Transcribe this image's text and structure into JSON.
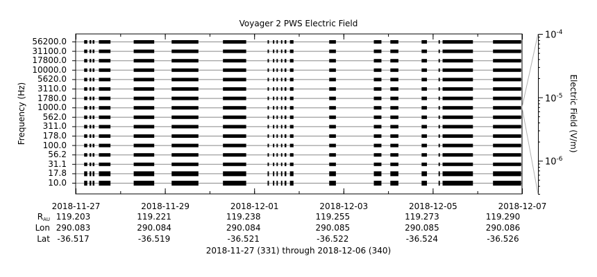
{
  "chart_data": {
    "type": "spectrogram",
    "title": "Voyager 2 PWS Electric Field",
    "ylabel": "Frequency (Hz)",
    "zlabel": "Electric Field (V/m)",
    "y_channels": [
      "10.0",
      "17.8",
      "31.1",
      "56.2",
      "100.0",
      "178.0",
      "311.0",
      "562.0",
      "1000.0",
      "1780.0",
      "3110.0",
      "5620.0",
      "10000.0",
      "17800.0",
      "31100.0",
      "56200.0"
    ],
    "colorbar": {
      "scale": "log",
      "range": [
        3e-07,
        0.0001
      ],
      "ticks": [
        {
          "base": "10",
          "exp": "-4",
          "value": 0.0001
        },
        {
          "base": "10",
          "exp": "-5",
          "value": 1e-05
        },
        {
          "base": "10",
          "exp": "-6",
          "value": 1e-06
        }
      ]
    },
    "x_range_days": [
      0,
      10
    ],
    "x_ticks": [
      {
        "day": 0,
        "date": "2018-11-27",
        "r": "119.203",
        "lon": "290.083",
        "lat": "-36.517"
      },
      {
        "day": 2,
        "date": "2018-11-29",
        "r": "119.221",
        "lon": "290.084",
        "lat": "-36.519"
      },
      {
        "day": 4,
        "date": "2018-12-01",
        "r": "119.238",
        "lon": "290.084",
        "lat": "-36.521"
      },
      {
        "day": 6,
        "date": "2018-12-03",
        "r": "119.255",
        "lon": "290.085",
        "lat": "-36.522"
      },
      {
        "day": 8,
        "date": "2018-12-05",
        "r": "119.273",
        "lon": "290.085",
        "lat": "-36.524"
      },
      {
        "day": 10,
        "date": "2018-12-07",
        "r": "119.290",
        "lon": "290.086",
        "lat": "-36.526"
      }
    ],
    "data_intervals_days": [
      [
        0.19,
        0.26
      ],
      [
        0.31,
        0.35
      ],
      [
        0.38,
        0.42
      ],
      [
        0.52,
        0.78
      ],
      [
        1.3,
        1.76
      ],
      [
        2.15,
        2.75
      ],
      [
        3.3,
        3.82
      ],
      [
        4.3,
        4.33
      ],
      [
        4.42,
        4.45
      ],
      [
        4.5,
        4.53
      ],
      [
        4.6,
        4.63
      ],
      [
        4.68,
        4.72
      ],
      [
        4.8,
        4.88
      ],
      [
        5.68,
        5.83
      ],
      [
        6.68,
        6.85
      ],
      [
        7.05,
        7.23
      ],
      [
        7.75,
        7.87
      ],
      [
        8.13,
        8.16
      ],
      [
        8.22,
        8.9
      ],
      [
        9.35,
        9.98
      ]
    ],
    "row_labels": {
      "r": "R",
      "r_sub": "AU",
      "lon": "Lon",
      "lat": "Lat"
    },
    "range_text": "2018-11-27 (331) through 2018-12-06 (340)"
  },
  "colors": {
    "data": "#000000",
    "axes": "#000000",
    "channel_lines": "#888888",
    "bg": "#ffffff",
    "colorbar_lines": "#b0b0b0"
  }
}
